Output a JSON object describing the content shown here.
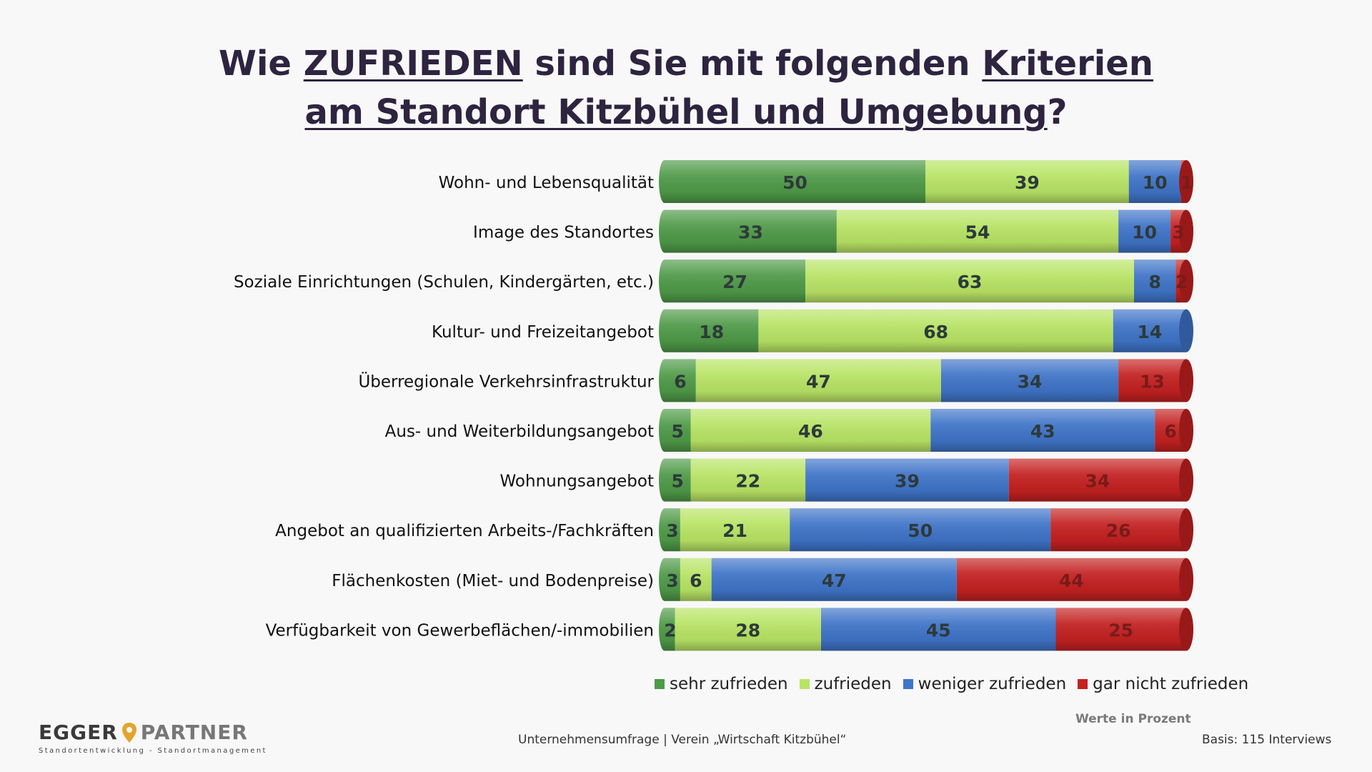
{
  "title": {
    "line1": [
      {
        "text": "Wie ",
        "underline": false
      },
      {
        "text": "ZUFRIEDEN",
        "underline": true
      },
      {
        "text": " sind Sie mit folgenden ",
        "underline": false
      },
      {
        "text": "Kriterien",
        "underline": true
      }
    ],
    "line2": [
      {
        "text": "am Standort Kitzbühel und Umgebung",
        "underline": true
      },
      {
        "text": "?",
        "underline": false
      }
    ]
  },
  "chart_data": {
    "type": "bar",
    "orientation": "horizontal",
    "stacked": "percent",
    "categories": [
      "Wohn- und Lebensqualität",
      "Image des Standortes",
      "Soziale Einrichtungen (Schulen, Kindergärten, etc.)",
      "Kultur- und Freizeitangebot",
      "Überregionale Verkehrsinfrastruktur",
      "Aus- und Weiterbildungsangebot",
      "Wohnungsangebot",
      "Angebot an qualifizierten Arbeits-/Fachkräften",
      "Flächenkosten (Miet- und Bodenpreise)",
      "Verfügbarkeit von Gewerbeflächen/-immobilien"
    ],
    "series": [
      {
        "name": "sehr zufrieden",
        "color": "#4f9a48",
        "values": [
          50,
          33,
          27,
          18,
          6,
          5,
          5,
          3,
          3,
          2
        ]
      },
      {
        "name": "zufrieden",
        "color": "#b8e465",
        "values": [
          39,
          54,
          63,
          68,
          47,
          46,
          22,
          21,
          6,
          28
        ]
      },
      {
        "name": "weniger zufrieden",
        "color": "#3f74c8",
        "values": [
          10,
          10,
          8,
          14,
          34,
          43,
          39,
          50,
          47,
          45
        ]
      },
      {
        "name": "gar nicht zufrieden",
        "color": "#c42121",
        "values": [
          1,
          3,
          2,
          0,
          13,
          6,
          34,
          26,
          44,
          25
        ]
      }
    ],
    "legend_position": "bottom-right",
    "grid": false,
    "xlim": [
      0,
      100
    ]
  },
  "footer": {
    "logo_left": "EGGER",
    "logo_right": "PARTNER",
    "logo_tagline": "Standortentwicklung - Standortmanagement",
    "source": "Unternehmensumfrage | Verein „Wirtschaft Kitzbühel“",
    "units_note": "Werte in Prozent",
    "basis": "Basis: 115 Interviews"
  }
}
